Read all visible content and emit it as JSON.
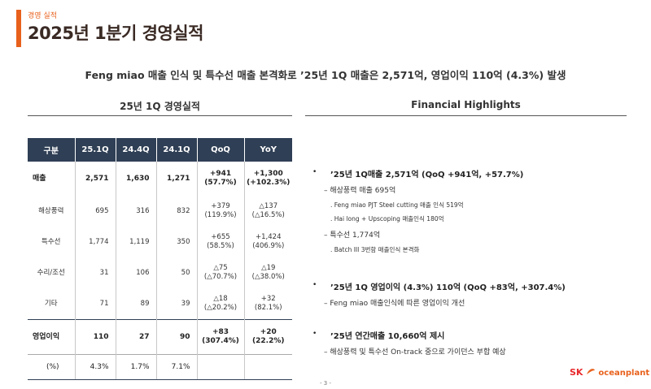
{
  "header": {
    "subtitle": "경영 실적",
    "title": "2025년 1분기 경영실적"
  },
  "headline": "Feng miao 매출 인식 및 특수선 매출 본격화로 ’25년 1Q 매출은 2,571억, 영업이익 110억 (4.3%) 발생",
  "sections": {
    "left_title": "25년 1Q 경영실적",
    "right_title": "Financial Highlights"
  },
  "table": {
    "headers": [
      "구분",
      "25.1Q",
      "24.4Q",
      "24.1Q",
      "QoQ",
      "YoY"
    ],
    "rows": [
      {
        "label": "매출",
        "v1": "2,571",
        "v2": "1,630",
        "v3": "1,271",
        "qoq1": "+941",
        "qoq2": "(57.7%)",
        "yoy1": "+1,300",
        "yoy2": "(+102.3%)"
      },
      {
        "label": "해상풍력",
        "v1": "695",
        "v2": "316",
        "v3": "832",
        "qoq1": "+379",
        "qoq2": "(119.9%)",
        "yoy1": "△137",
        "yoy2": "(△16.5%)"
      },
      {
        "label": "특수선",
        "v1": "1,774",
        "v2": "1,119",
        "v3": "350",
        "qoq1": "+655",
        "qoq2": "(58.5%)",
        "yoy1": "+1,424",
        "yoy2": "(406.9%)"
      },
      {
        "label": "수리/조선",
        "v1": "31",
        "v2": "106",
        "v3": "50",
        "qoq1": "△75",
        "qoq2": "(△70.7%)",
        "yoy1": "△19",
        "yoy2": "(△38.0%)"
      },
      {
        "label": "기타",
        "v1": "71",
        "v2": "89",
        "v3": "39",
        "qoq1": "△18",
        "qoq2": "(△20.2%)",
        "yoy1": "+32",
        "yoy2": "(82.1%)"
      },
      {
        "label": "영업이익",
        "v1": "110",
        "v2": "27",
        "v3": "90",
        "qoq1": "+83",
        "qoq2": "(307.4%)",
        "yoy1": "+20",
        "yoy2": "(22.2%)"
      },
      {
        "label": "(%)",
        "v1": "4.3%",
        "v2": "1.7%",
        "v3": "7.1%",
        "qoq1": "",
        "qoq2": "",
        "yoy1": "",
        "yoy2": ""
      }
    ]
  },
  "highlights": {
    "bullet": "•",
    "h1": "’25년 1Q매출 2,571억 (QoQ +941억, +57.7%)",
    "h1_sub1": "– 해상풍력 매출 695억",
    "h1_d1": ". Feng miao PJT Steel cutting 매출 인식 519억",
    "h1_d2": ". Hai long + Upscoping 매출인식 180억",
    "h1_sub2": "– 특수선 1,774억",
    "h1_d3": ". Batch III 3번함 매출인식 본격화",
    "h2": "’25년 1Q 영업이익 (4.3%) 110억 (QoQ +83억, +307.4%)",
    "h2_sub1": "– Feng miao 매출인식에 따른 영업이익 개선",
    "h3": "’25년 연간매출 10,660억 제시",
    "h3_sub1": "– 해상풍력 및 특수선 On-track 중으로 가이던스 부합 예상"
  },
  "footer": {
    "page": "- 3 -",
    "logo_sk": "SK",
    "logo_text": "oceanplant"
  }
}
